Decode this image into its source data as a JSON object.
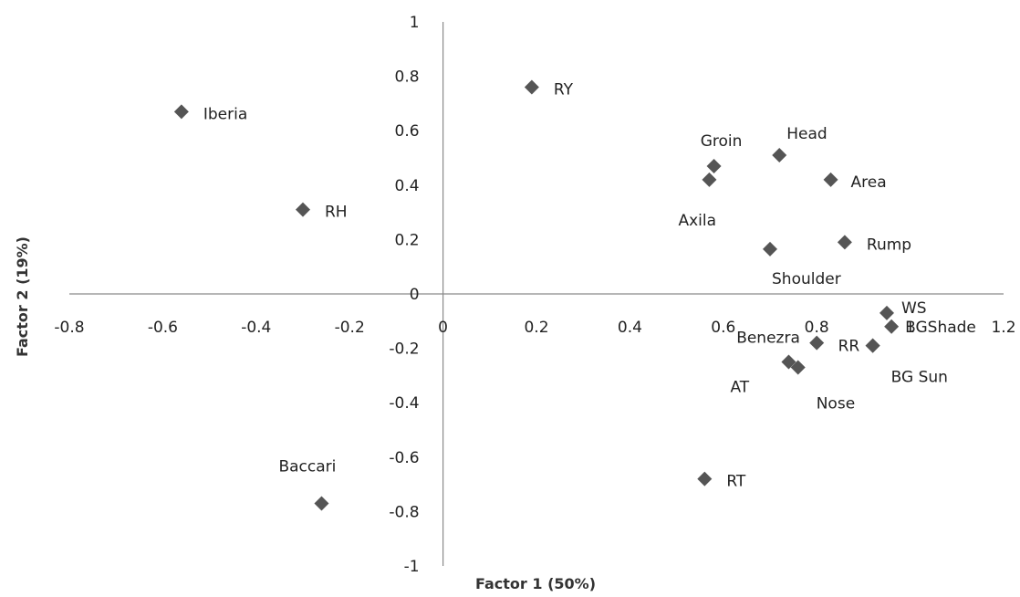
{
  "chart_data": {
    "type": "scatter",
    "xlabel": "Factor 1 (50%)",
    "ylabel": "Factor 2 (19%)",
    "xlim": [
      -0.8,
      1.2
    ],
    "ylim": [
      -1,
      1
    ],
    "grid": false,
    "marker": "diamond",
    "marker_color": "#555555",
    "x_ticks": [
      "-0.8",
      "-0.6",
      "-0.4",
      "-0.2",
      "0",
      "0.2",
      "0.4",
      "0.6",
      "0.8",
      "1",
      "1.2"
    ],
    "y_ticks": [
      "1",
      "0.8",
      "0.6",
      "0.4",
      "0.2",
      "0",
      "-0.2",
      "-0.4",
      "-0.6",
      "-0.8",
      "-1"
    ],
    "points": [
      {
        "label": "Iberia",
        "x": -0.56,
        "y": 0.67
      },
      {
        "label": "RY",
        "x": 0.19,
        "y": 0.76
      },
      {
        "label": "RH",
        "x": -0.3,
        "y": 0.31
      },
      {
        "label": "Groin",
        "x": 0.58,
        "y": 0.47
      },
      {
        "label": "Head",
        "x": 0.72,
        "y": 0.51
      },
      {
        "label": "Area",
        "x": 0.83,
        "y": 0.42
      },
      {
        "label": "Axila",
        "x": 0.57,
        "y": 0.42
      },
      {
        "label": "Rump",
        "x": 0.86,
        "y": 0.19
      },
      {
        "label": "Shoulder",
        "x": 0.7,
        "y": 0.165
      },
      {
        "label": "WS",
        "x": 0.95,
        "y": -0.07
      },
      {
        "label": "BGShade",
        "x": 0.96,
        "y": -0.12
      },
      {
        "label": "Benezra",
        "x": 0.8,
        "y": -0.18
      },
      {
        "label": "RR",
        "x": 0.92,
        "y": -0.19
      },
      {
        "label": "BG Sun",
        "x": 0.92,
        "y": -0.19
      },
      {
        "label": "AT",
        "x": 0.74,
        "y": -0.25
      },
      {
        "label": "Nose",
        "x": 0.76,
        "y": -0.27
      },
      {
        "label": "RT",
        "x": 0.56,
        "y": -0.68
      },
      {
        "label": "Baccari",
        "x": -0.26,
        "y": -0.77
      }
    ]
  }
}
